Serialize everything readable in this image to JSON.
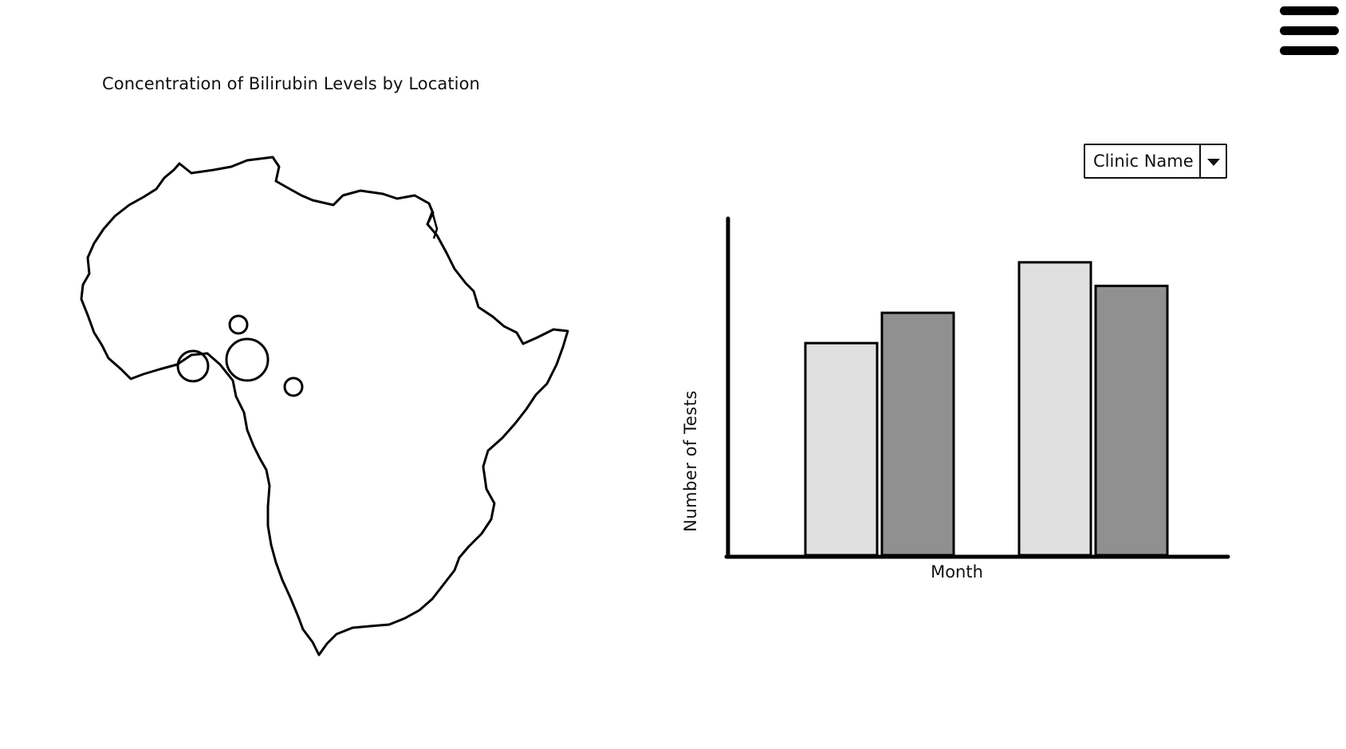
{
  "header": {
    "menu_icon": "hamburger-menu-icon",
    "title": "Concentration of Bilirubin Levels by Location"
  },
  "map": {
    "region": "africa-outline",
    "markers": [
      {
        "name": "marker-1",
        "relative_size": "small"
      },
      {
        "name": "marker-2",
        "relative_size": "medium"
      },
      {
        "name": "marker-3",
        "relative_size": "large"
      },
      {
        "name": "marker-4",
        "relative_size": "small"
      }
    ]
  },
  "filter": {
    "selected": "Clinic Name",
    "arrow_icon": "chevron-down-icon"
  },
  "chart_data": {
    "type": "bar",
    "xlabel": "Month",
    "ylabel": "Number of Tests",
    "ylim": [
      0,
      100
    ],
    "grid": false,
    "categories": [
      "",
      ""
    ],
    "series": [
      {
        "values": [
          63,
          87
        ],
        "color": "#e0e0e0"
      },
      {
        "values": [
          72,
          80
        ],
        "color": "#909090"
      }
    ]
  }
}
